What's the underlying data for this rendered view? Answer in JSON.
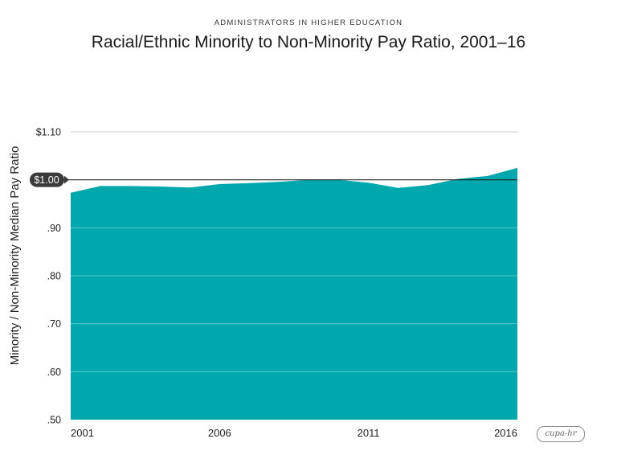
{
  "header": {
    "kicker": "ADMINISTRATORS IN HIGHER EDUCATION",
    "title": "Racial/Ethnic Minority to Non-Minority Pay Ratio, 2001–16"
  },
  "logo_text": "cupa-hr",
  "colors": {
    "area": "#00A8AD",
    "grid": "#c9c9c9",
    "reference_line": "#222222",
    "badge": "#3a3a3a"
  },
  "chart_data": {
    "type": "area",
    "title": "Racial/Ethnic Minority to Non-Minority Pay Ratio, 2001–16",
    "ylabel": "Minority / Non-Minority Median Pay Ratio",
    "xlabel": "",
    "x": [
      2001,
      2002,
      2003,
      2004,
      2005,
      2006,
      2007,
      2008,
      2009,
      2010,
      2011,
      2012,
      2013,
      2014,
      2015,
      2016
    ],
    "values": [
      0.973,
      0.987,
      0.987,
      0.986,
      0.984,
      0.991,
      0.993,
      0.996,
      1.0,
      1.0,
      0.994,
      0.983,
      0.989,
      1.002,
      1.008,
      1.025
    ],
    "ylim": [
      0.5,
      1.1
    ],
    "xlim": [
      2001,
      2016
    ],
    "y_ticks": [
      {
        "value": 1.1,
        "label": "$1.10"
      },
      {
        "value": 1.0,
        "label": "$1.00"
      },
      {
        "value": 0.9,
        "label": ".90"
      },
      {
        "value": 0.8,
        "label": ".80"
      },
      {
        "value": 0.7,
        "label": ".70"
      },
      {
        "value": 0.6,
        "label": ".60"
      },
      {
        "value": 0.5,
        "label": ".50"
      }
    ],
    "x_ticks": [
      {
        "value": 2001,
        "label": "2001"
      },
      {
        "value": 2006,
        "label": "2006"
      },
      {
        "value": 2011,
        "label": "2011"
      },
      {
        "value": 2016,
        "label": "2016"
      }
    ],
    "reference_value": 1.0,
    "grid": true
  }
}
